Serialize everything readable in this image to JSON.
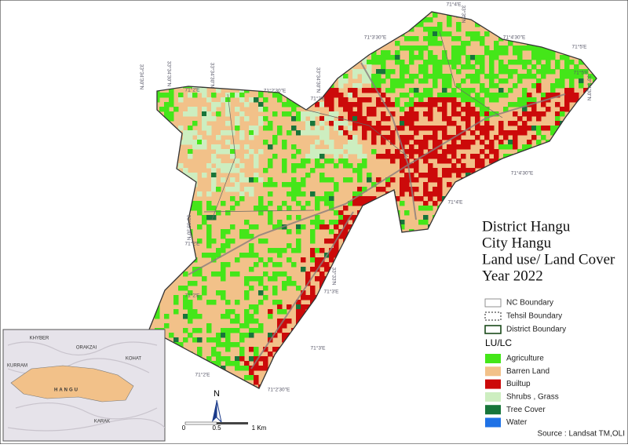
{
  "title_lines": [
    "District Hangu",
    "City Hangu",
    "Land use/ Land Cover",
    "Year 2022"
  ],
  "legend": {
    "boundaries": [
      "NC Boundary",
      "Tehsil Boundary",
      "District Boundary"
    ],
    "heading": "LU/LC",
    "classes": [
      {
        "name": "Agriculture",
        "color": "#44e619"
      },
      {
        "name": "Barren Land",
        "color": "#f2c189"
      },
      {
        "name": "Builtup",
        "color": "#cc0a0a"
      },
      {
        "name": "Shrubs , Grass",
        "color": "#cdeec0"
      },
      {
        "name": "Tree Cover",
        "color": "#17753a"
      },
      {
        "name": "Water",
        "color": "#1f72e6"
      }
    ]
  },
  "source": "Source : Landsat TM,OLI",
  "north": "N",
  "scale": [
    "0",
    "0.5",
    "1 Km"
  ],
  "coordinates": [
    "71°4'E",
    "33°35'N",
    "71°3'30\"E",
    "71°4'30\"E",
    "71°5'E",
    "71°5'E",
    "33°34'30\"N",
    "33°34'30\"N",
    "33°34'30\"N",
    "33°34'30\"N",
    "71°2'E",
    "71°2'30\"E",
    "33°34'30\"N",
    "71°3'E",
    "71°4'30\"E",
    "71°4'E",
    "33°33'30\"N",
    "71°2'E",
    "33°33'N",
    "71°3'E",
    "71°2'E",
    "33°32'30\"N",
    "71°3'E",
    "71°2'E",
    "71°2'30\"E"
  ],
  "inset": [
    "KHYBER",
    "ORAKZAI",
    "KURRAM",
    "KOHAT",
    "HANGU",
    "KARAK"
  ]
}
